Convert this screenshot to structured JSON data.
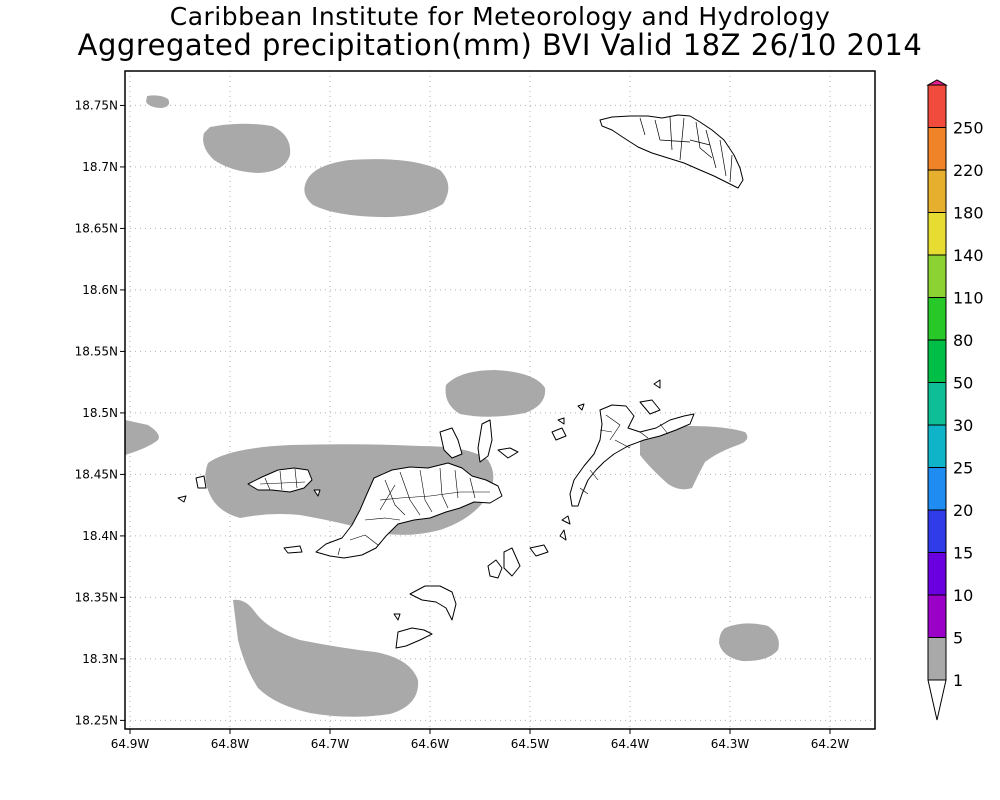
{
  "title": {
    "line1": "Caribbean Institute for Meteorology and Hydrology",
    "line2": "Aggregated precipitation(mm) BVI Valid 18Z 26/10 2014"
  },
  "map": {
    "lon_range": [
      -64.905,
      -64.155
    ],
    "lat_range": [
      18.243,
      18.778
    ],
    "lat_ticks": [
      "18.75N",
      "18.7N",
      "18.65N",
      "18.6N",
      "18.55N",
      "18.5N",
      "18.45N",
      "18.4N",
      "18.35N",
      "18.3N",
      "18.25N"
    ],
    "lat_values": [
      18.75,
      18.7,
      18.65,
      18.6,
      18.55,
      18.5,
      18.45,
      18.4,
      18.35,
      18.3,
      18.25
    ],
    "lon_ticks": [
      "64.9W",
      "64.8W",
      "64.7W",
      "64.6W",
      "64.5W",
      "64.4W",
      "64.3W",
      "64.2W"
    ],
    "lon_values": [
      -64.9,
      -64.8,
      -64.7,
      -64.6,
      -64.5,
      -64.4,
      -64.3,
      -64.2
    ],
    "grid": "dotted",
    "precip_fill_color": "#a9a9a9"
  },
  "colorbar": {
    "labels": [
      "1",
      "5",
      "10",
      "15",
      "20",
      "25",
      "30",
      "50",
      "80",
      "110",
      "140",
      "180",
      "220",
      "250"
    ],
    "colors": [
      "#a9a9a9",
      "#9b00c9",
      "#6a00e0",
      "#2f3ce8",
      "#1e8cf0",
      "#0fb4c8",
      "#0ebe96",
      "#00be46",
      "#28c828",
      "#8cd232",
      "#e6dc32",
      "#e6af2d",
      "#f08228",
      "#f04b3c",
      "#e61e8c"
    ]
  }
}
